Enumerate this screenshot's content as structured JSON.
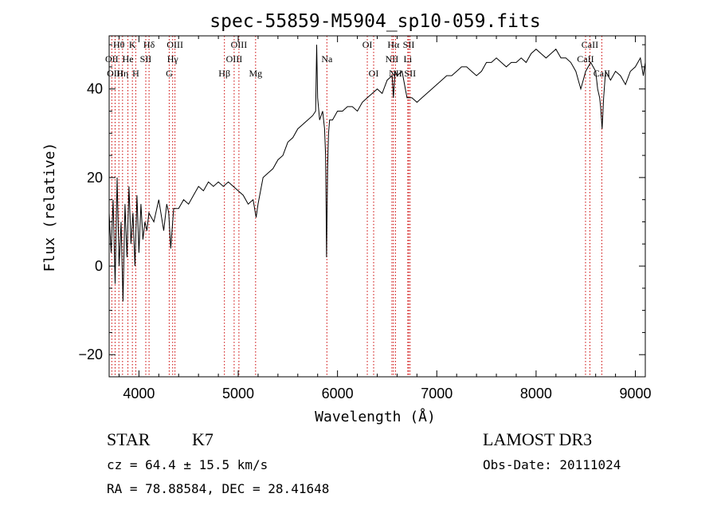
{
  "chart_data": {
    "type": "line",
    "title": "spec-55859-M5904_sp10-059.fits",
    "xlabel": "Wavelength (Å)",
    "ylabel": "Flux (relative)",
    "xlim": [
      3700,
      9100
    ],
    "ylim": [
      -25,
      52
    ],
    "xticks": [
      4000,
      5000,
      6000,
      7000,
      8000,
      9000
    ],
    "xtick_labels": [
      "4000",
      "5000",
      "6000",
      "7000",
      "8000",
      "9000"
    ],
    "yticks": [
      -20,
      0,
      20,
      40
    ],
    "ytick_labels": [
      "−20",
      "0",
      "20",
      "40"
    ],
    "series": [
      {
        "name": "flux",
        "color": "#000000",
        "x": [
          3700,
          3720,
          3740,
          3760,
          3780,
          3800,
          3820,
          3840,
          3860,
          3880,
          3900,
          3920,
          3940,
          3960,
          3980,
          4000,
          4020,
          4040,
          4060,
          4080,
          4100,
          4150,
          4200,
          4250,
          4280,
          4300,
          4320,
          4350,
          4400,
          4450,
          4500,
          4550,
          4600,
          4650,
          4700,
          4750,
          4800,
          4850,
          4900,
          4950,
          5000,
          5050,
          5100,
          5150,
          5180,
          5200,
          5250,
          5300,
          5350,
          5400,
          5450,
          5500,
          5550,
          5600,
          5650,
          5700,
          5750,
          5780,
          5790,
          5800,
          5820,
          5850,
          5870,
          5880,
          5890,
          5900,
          5910,
          5920,
          5950,
          6000,
          6050,
          6100,
          6150,
          6200,
          6250,
          6300,
          6350,
          6400,
          6450,
          6500,
          6550,
          6563,
          6580,
          6600,
          6650,
          6700,
          6750,
          6800,
          6850,
          6900,
          6950,
          7000,
          7050,
          7100,
          7150,
          7200,
          7250,
          7300,
          7350,
          7400,
          7450,
          7500,
          7550,
          7600,
          7650,
          7700,
          7750,
          7800,
          7850,
          7900,
          7950,
          8000,
          8050,
          8100,
          8150,
          8200,
          8250,
          8300,
          8350,
          8400,
          8450,
          8500,
          8550,
          8600,
          8620,
          8640,
          8650,
          8665,
          8680,
          8700,
          8750,
          8800,
          8850,
          8900,
          8950,
          9000,
          9050,
          9080,
          9100
        ],
        "values": [
          12,
          3,
          15,
          -4,
          20,
          0,
          10,
          -8,
          14,
          2,
          18,
          5,
          12,
          0,
          16,
          3,
          14,
          6,
          10,
          8,
          12,
          10,
          15,
          8,
          14,
          12,
          4,
          13,
          13,
          15,
          14,
          16,
          18,
          17,
          19,
          18,
          19,
          18,
          19,
          18,
          17,
          16,
          14,
          15,
          11,
          14,
          20,
          21,
          22,
          24,
          25,
          28,
          29,
          31,
          32,
          33,
          34,
          35,
          50,
          38,
          33,
          35,
          31,
          25,
          2,
          22,
          30,
          33,
          33,
          35,
          35,
          36,
          36,
          35,
          37,
          38,
          39,
          40,
          39,
          42,
          43,
          38,
          44,
          43,
          44,
          38,
          38,
          37,
          38,
          39,
          40,
          41,
          42,
          43,
          43,
          44,
          45,
          45,
          44,
          43,
          44,
          46,
          46,
          47,
          46,
          45,
          46,
          46,
          47,
          46,
          48,
          49,
          48,
          47,
          48,
          49,
          47,
          47,
          46,
          44,
          40,
          44,
          46,
          44,
          40,
          38,
          36,
          31,
          38,
          44,
          42,
          44,
          43,
          41,
          44,
          45,
          47,
          43,
          46
        ]
      }
    ],
    "line_labels": [
      {
        "text": "Hθ",
        "x": 3798,
        "row": 1
      },
      {
        "text": "K",
        "x": 3934,
        "row": 1
      },
      {
        "text": "Hδ",
        "x": 4102,
        "row": 1
      },
      {
        "text": "OIII",
        "x": 4363,
        "row": 1
      },
      {
        "text": "OIII",
        "x": 5007,
        "row": 1
      },
      {
        "text": "OI",
        "x": 6300,
        "row": 1
      },
      {
        "text": "Hα",
        "x": 6563,
        "row": 1
      },
      {
        "text": "SII",
        "x": 6717,
        "row": 1
      },
      {
        "text": "CaII",
        "x": 8542,
        "row": 1
      },
      {
        "text": "OII",
        "x": 3727,
        "row": 2
      },
      {
        "text": "He",
        "x": 3889,
        "row": 2
      },
      {
        "text": "SII",
        "x": 4069,
        "row": 2
      },
      {
        "text": "Hγ",
        "x": 4340,
        "row": 2
      },
      {
        "text": "OIII",
        "x": 4959,
        "row": 2
      },
      {
        "text": "Na",
        "x": 5893,
        "row": 2
      },
      {
        "text": "NII",
        "x": 6548,
        "row": 2
      },
      {
        "text": "Li",
        "x": 6708,
        "row": 2
      },
      {
        "text": "CaII",
        "x": 8498,
        "row": 2
      },
      {
        "text": "OIII",
        "x": 3760,
        "row": 3
      },
      {
        "text": "Hη",
        "x": 3835,
        "row": 3
      },
      {
        "text": "H",
        "x": 3968,
        "row": 3
      },
      {
        "text": "G",
        "x": 4305,
        "row": 3
      },
      {
        "text": "Hβ",
        "x": 4861,
        "row": 3
      },
      {
        "text": "Mg",
        "x": 5175,
        "row": 3
      },
      {
        "text": "OI",
        "x": 6364,
        "row": 3
      },
      {
        "text": "NII",
        "x": 6584,
        "row": 3
      },
      {
        "text": "SII",
        "x": 6731,
        "row": 3
      },
      {
        "text": "CaII",
        "x": 8662,
        "row": 3
      }
    ],
    "line_marker_color": "#cc0000"
  },
  "info": {
    "object_class": "STAR",
    "subclass": "K7",
    "survey": "LAMOST DR3",
    "cz": "cz = 64.4 ± 15.5 km/s",
    "obs_date": "Obs-Date: 20111024",
    "coords": "RA =  78.88584, DEC =  28.41648"
  }
}
